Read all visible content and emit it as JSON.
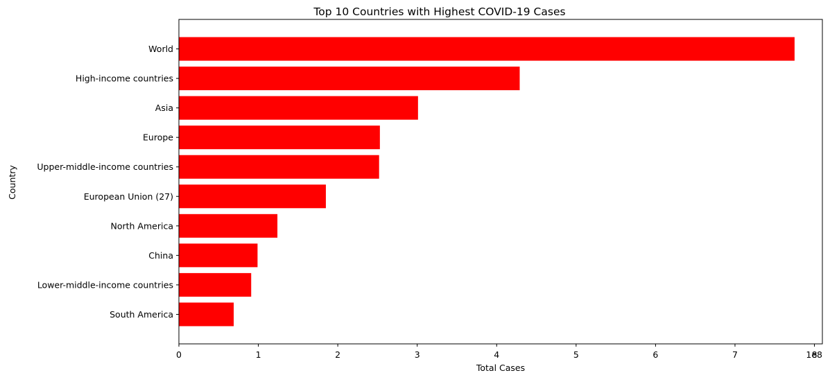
{
  "chart_data": {
    "type": "bar",
    "orientation": "horizontal",
    "title": "Top 10 Countries with Highest COVID-19 Cases",
    "xlabel": "Total Cases",
    "ylabel": "Country",
    "x_offset_label": "1e8",
    "x_scale": 100000000,
    "xlim": [
      0,
      810000000
    ],
    "x_ticks": [
      0,
      100000000,
      200000000,
      300000000,
      400000000,
      500000000,
      600000000,
      700000000,
      800000000
    ],
    "x_tick_labels": [
      "0",
      "1",
      "2",
      "3",
      "4",
      "5",
      "6",
      "7",
      "8"
    ],
    "grid": false,
    "legend": "none",
    "bar_color": "#ff0000",
    "categories": [
      "World",
      "High-income countries",
      "Asia",
      "Europe",
      "Upper-middle-income countries",
      "European Union (27)",
      "North America",
      "China",
      "Lower-middle-income countries",
      "South America"
    ],
    "values": [
      775000000,
      429000000,
      301000000,
      253000000,
      252000000,
      185000000,
      124000000,
      99000000,
      91000000,
      69000000
    ]
  }
}
